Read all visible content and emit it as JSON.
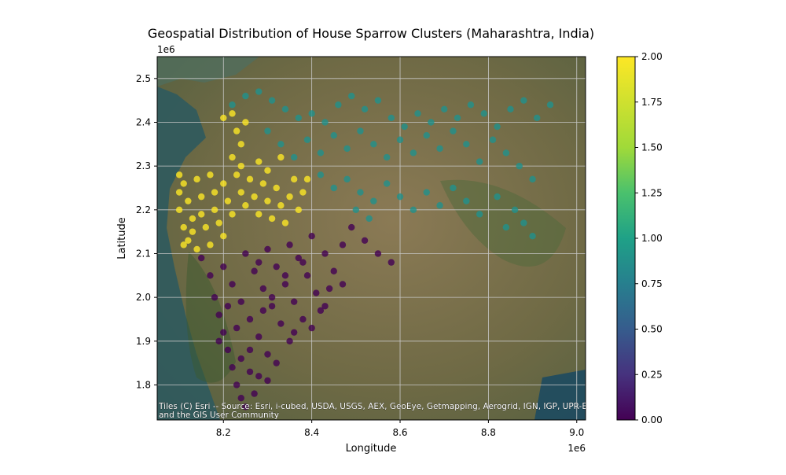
{
  "chart_data": {
    "type": "scatter",
    "title": "Geospatial Distribution of House Sparrow Clusters (Maharashtra, India)",
    "xlabel": "Longitude",
    "ylabel": "Latitude",
    "x_offset_label": "1e6",
    "y_offset_label": "1e6",
    "xlim": [
      8.05,
      9.02
    ],
    "ylim": [
      1.72,
      2.55
    ],
    "x_unit_note": "axis values shown in units of 1e6",
    "xticks": [
      8.2,
      8.4,
      8.6,
      8.8,
      9.0
    ],
    "xtick_labels": [
      "8.2",
      "8.4",
      "8.6",
      "8.8",
      "9.0"
    ],
    "yticks": [
      1.8,
      1.9,
      2.0,
      2.1,
      2.2,
      2.3,
      2.4,
      2.5
    ],
    "ytick_labels": [
      "1.8",
      "1.9",
      "2.0",
      "2.1",
      "2.2",
      "2.3",
      "2.4",
      "2.5"
    ],
    "grid": true,
    "colorbar": {
      "range": [
        0.0,
        2.0
      ],
      "ticks": [
        0.0,
        0.25,
        0.5,
        0.75,
        1.0,
        1.25,
        1.5,
        1.75,
        2.0
      ],
      "tick_labels": [
        "0.00",
        "0.25",
        "0.50",
        "0.75",
        "1.00",
        "1.25",
        "1.50",
        "1.75",
        "2.00"
      ],
      "colormap": "viridis"
    },
    "attribution": "Tiles (C) Esri -- Source: Esri, i-cubed, USDA, USGS, AEX, GeoEye, Getmapping, Aerogrid, IGN, IGP, UPR-EGP, and the GIS User Community",
    "series": [
      {
        "cluster": 0,
        "color": "#440154",
        "points": [
          [
            8.15,
            2.09
          ],
          [
            8.17,
            2.05
          ],
          [
            8.18,
            2.0
          ],
          [
            8.19,
            1.96
          ],
          [
            8.2,
            1.92
          ],
          [
            8.21,
            1.88
          ],
          [
            8.22,
            1.84
          ],
          [
            8.23,
            1.8
          ],
          [
            8.24,
            1.77
          ],
          [
            8.25,
            1.75
          ],
          [
            8.27,
            1.78
          ],
          [
            8.28,
            1.82
          ],
          [
            8.2,
            2.07
          ],
          [
            8.22,
            2.03
          ],
          [
            8.24,
            1.99
          ],
          [
            8.26,
            1.95
          ],
          [
            8.28,
            1.91
          ],
          [
            8.3,
            1.87
          ],
          [
            8.32,
            1.85
          ],
          [
            8.25,
            2.1
          ],
          [
            8.27,
            2.06
          ],
          [
            8.29,
            2.02
          ],
          [
            8.31,
            1.98
          ],
          [
            8.33,
            1.94
          ],
          [
            8.35,
            1.9
          ],
          [
            8.3,
            2.11
          ],
          [
            8.32,
            2.07
          ],
          [
            8.34,
            2.03
          ],
          [
            8.36,
            1.99
          ],
          [
            8.38,
            1.95
          ],
          [
            8.4,
            1.93
          ],
          [
            8.35,
            2.12
          ],
          [
            8.37,
            2.09
          ],
          [
            8.39,
            2.05
          ],
          [
            8.41,
            2.01
          ],
          [
            8.42,
            1.97
          ],
          [
            8.4,
            2.14
          ],
          [
            8.43,
            2.1
          ],
          [
            8.45,
            2.06
          ],
          [
            8.44,
            2.02
          ],
          [
            8.47,
            2.12
          ],
          [
            8.49,
            2.16
          ],
          [
            8.52,
            2.13
          ],
          [
            8.55,
            2.1
          ],
          [
            8.58,
            2.08
          ],
          [
            8.47,
            2.03
          ],
          [
            8.19,
            1.9
          ],
          [
            8.26,
            1.88
          ],
          [
            8.23,
            1.93
          ],
          [
            8.29,
            1.97
          ],
          [
            8.31,
            2.0
          ],
          [
            8.21,
            1.98
          ],
          [
            8.34,
            2.05
          ],
          [
            8.28,
            2.08
          ],
          [
            8.36,
            1.92
          ],
          [
            8.38,
            2.08
          ],
          [
            8.43,
            1.98
          ],
          [
            8.26,
            1.83
          ],
          [
            8.24,
            1.86
          ],
          [
            8.3,
            1.81
          ]
        ]
      },
      {
        "cluster": 1,
        "color": "#21918c",
        "points": [
          [
            8.22,
            2.44
          ],
          [
            8.25,
            2.46
          ],
          [
            8.28,
            2.47
          ],
          [
            8.31,
            2.45
          ],
          [
            8.34,
            2.43
          ],
          [
            8.37,
            2.41
          ],
          [
            8.4,
            2.42
          ],
          [
            8.43,
            2.4
          ],
          [
            8.46,
            2.44
          ],
          [
            8.49,
            2.46
          ],
          [
            8.52,
            2.43
          ],
          [
            8.55,
            2.45
          ],
          [
            8.58,
            2.41
          ],
          [
            8.61,
            2.39
          ],
          [
            8.64,
            2.42
          ],
          [
            8.67,
            2.4
          ],
          [
            8.7,
            2.43
          ],
          [
            8.73,
            2.41
          ],
          [
            8.76,
            2.44
          ],
          [
            8.79,
            2.42
          ],
          [
            8.82,
            2.39
          ],
          [
            8.85,
            2.43
          ],
          [
            8.88,
            2.45
          ],
          [
            8.91,
            2.41
          ],
          [
            8.94,
            2.44
          ],
          [
            8.3,
            2.38
          ],
          [
            8.33,
            2.35
          ],
          [
            8.36,
            2.32
          ],
          [
            8.39,
            2.36
          ],
          [
            8.42,
            2.33
          ],
          [
            8.45,
            2.37
          ],
          [
            8.48,
            2.34
          ],
          [
            8.51,
            2.38
          ],
          [
            8.54,
            2.35
          ],
          [
            8.57,
            2.32
          ],
          [
            8.6,
            2.36
          ],
          [
            8.63,
            2.33
          ],
          [
            8.66,
            2.37
          ],
          [
            8.69,
            2.34
          ],
          [
            8.72,
            2.38
          ],
          [
            8.75,
            2.35
          ],
          [
            8.78,
            2.31
          ],
          [
            8.81,
            2.36
          ],
          [
            8.84,
            2.33
          ],
          [
            8.87,
            2.3
          ],
          [
            8.9,
            2.27
          ],
          [
            8.42,
            2.28
          ],
          [
            8.45,
            2.25
          ],
          [
            8.48,
            2.27
          ],
          [
            8.51,
            2.24
          ],
          [
            8.54,
            2.22
          ],
          [
            8.57,
            2.26
          ],
          [
            8.6,
            2.23
          ],
          [
            8.63,
            2.2
          ],
          [
            8.66,
            2.24
          ],
          [
            8.69,
            2.21
          ],
          [
            8.72,
            2.25
          ],
          [
            8.75,
            2.22
          ],
          [
            8.78,
            2.19
          ],
          [
            8.82,
            2.23
          ],
          [
            8.86,
            2.2
          ],
          [
            8.5,
            2.2
          ],
          [
            8.53,
            2.18
          ],
          [
            8.88,
            2.17
          ],
          [
            8.9,
            2.14
          ],
          [
            8.84,
            2.16
          ]
        ]
      },
      {
        "cluster": 2,
        "color": "#fde725",
        "points": [
          [
            8.1,
            2.28
          ],
          [
            8.1,
            2.24
          ],
          [
            8.1,
            2.2
          ],
          [
            8.11,
            2.16
          ],
          [
            8.12,
            2.13
          ],
          [
            8.11,
            2.26
          ],
          [
            8.12,
            2.22
          ],
          [
            8.13,
            2.18
          ],
          [
            8.13,
            2.15
          ],
          [
            8.14,
            2.27
          ],
          [
            8.15,
            2.23
          ],
          [
            8.15,
            2.19
          ],
          [
            8.16,
            2.16
          ],
          [
            8.17,
            2.28
          ],
          [
            8.18,
            2.24
          ],
          [
            8.18,
            2.2
          ],
          [
            8.19,
            2.17
          ],
          [
            8.2,
            2.26
          ],
          [
            8.21,
            2.22
          ],
          [
            8.22,
            2.19
          ],
          [
            8.23,
            2.28
          ],
          [
            8.24,
            2.24
          ],
          [
            8.25,
            2.21
          ],
          [
            8.26,
            2.27
          ],
          [
            8.27,
            2.23
          ],
          [
            8.28,
            2.19
          ],
          [
            8.29,
            2.26
          ],
          [
            8.3,
            2.22
          ],
          [
            8.31,
            2.18
          ],
          [
            8.32,
            2.25
          ],
          [
            8.33,
            2.21
          ],
          [
            8.34,
            2.17
          ],
          [
            8.35,
            2.23
          ],
          [
            8.36,
            2.27
          ],
          [
            8.37,
            2.2
          ],
          [
            8.38,
            2.24
          ],
          [
            8.39,
            2.27
          ],
          [
            8.22,
            2.32
          ],
          [
            8.24,
            2.35
          ],
          [
            8.23,
            2.38
          ],
          [
            8.25,
            2.4
          ],
          [
            8.22,
            2.42
          ],
          [
            8.2,
            2.41
          ],
          [
            8.24,
            2.3
          ],
          [
            8.28,
            2.31
          ],
          [
            8.3,
            2.29
          ],
          [
            8.33,
            2.32
          ],
          [
            8.11,
            2.12
          ],
          [
            8.14,
            2.11
          ],
          [
            8.17,
            2.12
          ],
          [
            8.2,
            2.14
          ]
        ]
      }
    ]
  }
}
